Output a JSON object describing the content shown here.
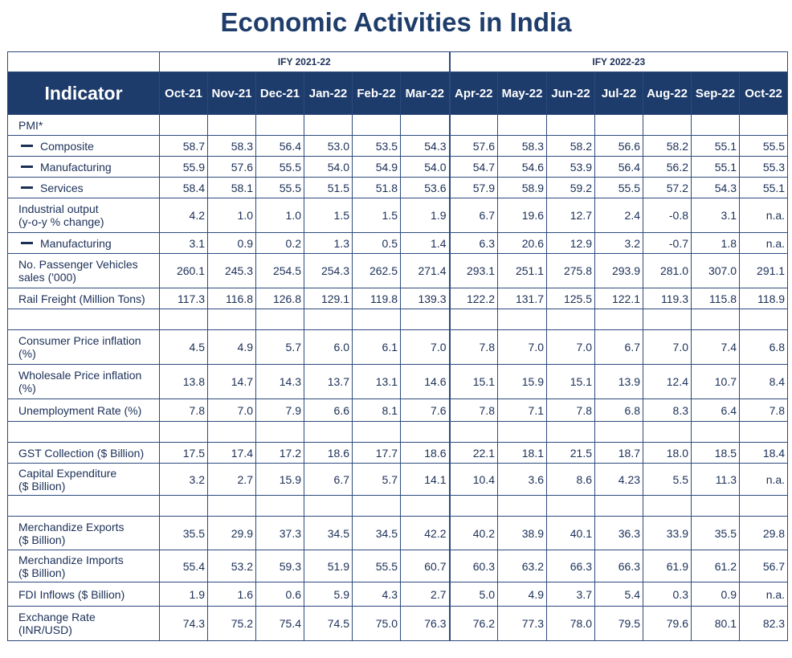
{
  "title": "Economic Activities in India",
  "groups": [
    "IFY 2021-22",
    "IFY 2022-23"
  ],
  "indicator_header": "Indicator",
  "months": [
    "Oct-21",
    "Nov-21",
    "Dec-21",
    "Jan-22",
    "Feb-22",
    "Mar-22",
    "Apr-22",
    "May-22",
    "Jun-22",
    "Jul-22",
    "Aug-22",
    "Sep-22",
    "Oct-22"
  ],
  "rows": [
    {
      "label": "PMI*",
      "values": []
    },
    {
      "label": "Composite",
      "sub": true,
      "values": [
        "58.7",
        "58.3",
        "56.4",
        "53.0",
        "53.5",
        "54.3",
        "57.6",
        "58.3",
        "58.2",
        "56.6",
        "58.2",
        "55.1",
        "55.5"
      ]
    },
    {
      "label": "Manufacturing",
      "sub": true,
      "values": [
        "55.9",
        "57.6",
        "55.5",
        "54.0",
        "54.9",
        "54.0",
        "54.7",
        "54.6",
        "53.9",
        "56.4",
        "56.2",
        "55.1",
        "55.3"
      ]
    },
    {
      "label": "Services",
      "sub": true,
      "values": [
        "58.4",
        "58.1",
        "55.5",
        "51.5",
        "51.8",
        "53.6",
        "57.9",
        "58.9",
        "59.2",
        "55.5",
        "57.2",
        "54.3",
        "55.1"
      ]
    },
    {
      "label": "Industrial output",
      "label2": "(y-o-y % change)",
      "values": [
        "4.2",
        "1.0",
        "1.0",
        "1.5",
        "1.5",
        "1.9",
        "6.7",
        "19.6",
        "12.7",
        "2.4",
        "-0.8",
        "3.1",
        "n.a."
      ]
    },
    {
      "label": "Manufacturing",
      "sub": true,
      "values": [
        "3.1",
        "0.9",
        "0.2",
        "1.3",
        "0.5",
        "1.4",
        "6.3",
        "20.6",
        "12.9",
        "3.2",
        "-0.7",
        "1.8",
        "n.a."
      ]
    },
    {
      "label": "No. Passenger Vehicles",
      "label2": "sales ('000)",
      "values": [
        "260.1",
        "245.3",
        "254.5",
        "254.3",
        "262.5",
        "271.4",
        "293.1",
        "251.1",
        "275.8",
        "293.9",
        "281.0",
        "307.0",
        "291.1"
      ]
    },
    {
      "label": "Rail Freight (Million Tons)",
      "values": [
        "117.3",
        "116.8",
        "126.8",
        "129.1",
        "119.8",
        "139.3",
        "122.2",
        "131.7",
        "125.5",
        "122.1",
        "119.3",
        "115.8",
        "118.9"
      ]
    },
    {
      "blank": true
    },
    {
      "label": "Consumer Price inflation",
      "label2": "(%)",
      "values": [
        "4.5",
        "4.9",
        "5.7",
        "6.0",
        "6.1",
        "7.0",
        "7.8",
        "7.0",
        "7.0",
        "6.7",
        "7.0",
        "7.4",
        "6.8"
      ]
    },
    {
      "label": "Wholesale Price inflation",
      "label2": "(%)",
      "values": [
        "13.8",
        "14.7",
        "14.3",
        "13.7",
        "13.1",
        "14.6",
        "15.1",
        "15.9",
        "15.1",
        "13.9",
        "12.4",
        "10.7",
        "8.4"
      ]
    },
    {
      "label": "Unemployment Rate (%)",
      "values": [
        "7.8",
        "7.0",
        "7.9",
        "6.6",
        "8.1",
        "7.6",
        "7.8",
        "7.1",
        "7.8",
        "6.8",
        "8.3",
        "6.4",
        "7.8"
      ]
    },
    {
      "blank": true
    },
    {
      "label": "GST Collection ($ Billion)",
      "values": [
        "17.5",
        "17.4",
        "17.2",
        "18.6",
        "17.7",
        "18.6",
        "22.1",
        "18.1",
        "21.5",
        "18.7",
        "18.0",
        "18.5",
        "18.4"
      ]
    },
    {
      "label": "Capital Expenditure",
      "label2": "($ Billion)",
      "values": [
        "3.2",
        "2.7",
        "15.9",
        "6.7",
        "5.7",
        "14.1",
        "10.4",
        "3.6",
        "8.6",
        "4.23",
        "5.5",
        "11.3",
        "n.a."
      ]
    },
    {
      "blank": true
    },
    {
      "label": "Merchandize Exports",
      "label2": "($ Billion)",
      "values": [
        "35.5",
        "29.9",
        "37.3",
        "34.5",
        "34.5",
        "42.2",
        "40.2",
        "38.9",
        "40.1",
        "36.3",
        "33.9",
        "35.5",
        "29.8"
      ]
    },
    {
      "label": "Merchandize Imports",
      "label2": "($ Billion)",
      "values": [
        "55.4",
        "53.2",
        "59.3",
        "51.9",
        "55.5",
        "60.7",
        "60.3",
        "63.2",
        "66.3",
        "66.3",
        "61.9",
        "61.2",
        "56.7"
      ]
    },
    {
      "label": "FDI Inflows ($ Billion)",
      "values": [
        "1.9",
        "1.6",
        "0.6",
        "5.9",
        "4.3",
        "2.7",
        "5.0",
        "4.9",
        "3.7",
        "5.4",
        "0.3",
        "0.9",
        "n.a."
      ]
    },
    {
      "label": "Exchange Rate",
      "label2": "(INR/USD)",
      "values": [
        "74.3",
        "75.2",
        "75.4",
        "74.5",
        "75.0",
        "76.3",
        "76.2",
        "77.3",
        "78.0",
        "79.5",
        "79.6",
        "80.1",
        "82.3"
      ]
    }
  ]
}
